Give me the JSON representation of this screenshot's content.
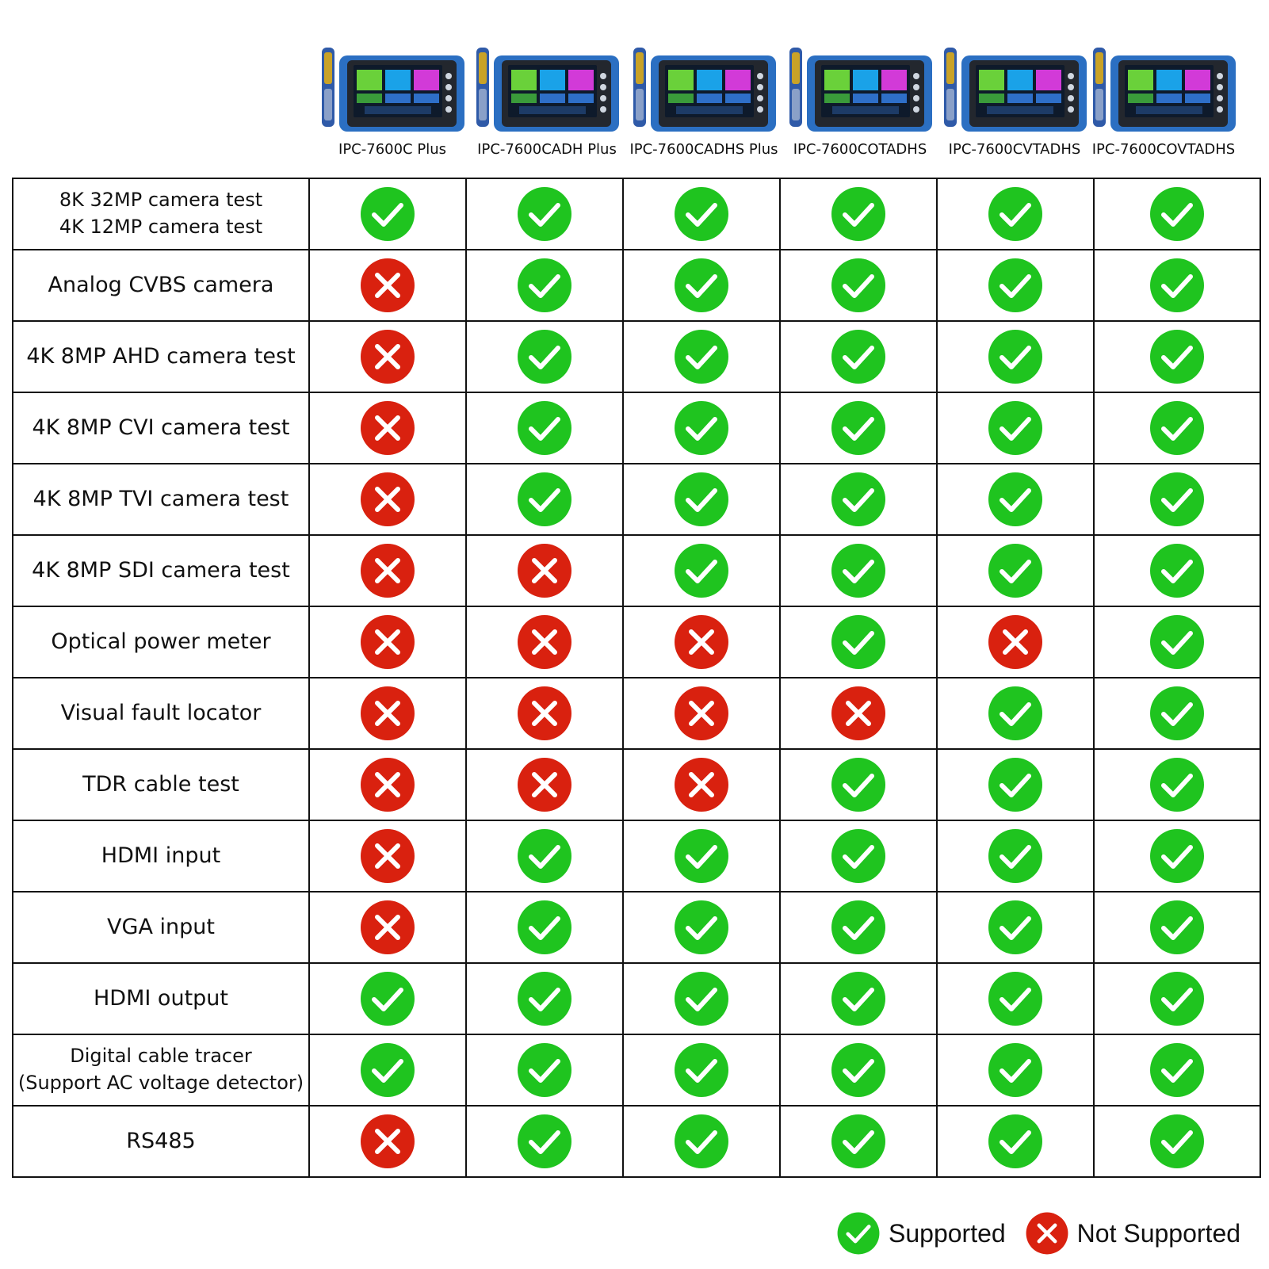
{
  "models": [
    {
      "name": "IPC-7600C Plus"
    },
    {
      "name": "IPC-7600CADH Plus"
    },
    {
      "name": "IPC-7600CADHS Plus"
    },
    {
      "name": "IPC-7600COTADHS"
    },
    {
      "name": "IPC-7600CVTADHS"
    },
    {
      "name": "IPC-7600COVTADHS"
    }
  ],
  "features": [
    {
      "label": "8K 32MP camera test",
      "label2": "4K 12MP camera test",
      "support": [
        true,
        true,
        true,
        true,
        true,
        true
      ]
    },
    {
      "label": "Analog CVBS camera",
      "support": [
        false,
        true,
        true,
        true,
        true,
        true
      ]
    },
    {
      "label": "4K 8MP AHD camera test",
      "support": [
        false,
        true,
        true,
        true,
        true,
        true
      ]
    },
    {
      "label": "4K 8MP CVI camera test",
      "support": [
        false,
        true,
        true,
        true,
        true,
        true
      ]
    },
    {
      "label": "4K 8MP TVI camera test",
      "support": [
        false,
        true,
        true,
        true,
        true,
        true
      ]
    },
    {
      "label": "4K 8MP SDI camera test",
      "support": [
        false,
        false,
        true,
        true,
        true,
        true
      ]
    },
    {
      "label": "Optical power meter",
      "support": [
        false,
        false,
        false,
        true,
        false,
        true
      ]
    },
    {
      "label": "Visual fault locator",
      "support": [
        false,
        false,
        false,
        false,
        true,
        true
      ]
    },
    {
      "label": "TDR cable  test",
      "support": [
        false,
        false,
        false,
        true,
        true,
        true
      ]
    },
    {
      "label": "HDMI input",
      "support": [
        false,
        true,
        true,
        true,
        true,
        true
      ]
    },
    {
      "label": "VGA input",
      "support": [
        false,
        true,
        true,
        true,
        true,
        true
      ]
    },
    {
      "label": "HDMI output",
      "support": [
        true,
        true,
        true,
        true,
        true,
        true
      ]
    },
    {
      "label": "Digital cable tracer",
      "label2": "(Support AC voltage detector)",
      "support": [
        true,
        true,
        true,
        true,
        true,
        true
      ]
    },
    {
      "label": "RS485",
      "support": [
        false,
        true,
        true,
        true,
        true,
        true
      ]
    }
  ],
  "legend": {
    "supported": "Supported",
    "not_supported": "Not Supported"
  },
  "colors": {
    "supported": "#1fc41f",
    "not_supported": "#d9210f",
    "border": "#111111",
    "device_body": "#2b6fc2",
    "device_bezel": "#23272e",
    "tile_green": "#6ad13a",
    "tile_blue": "#1aa2e8",
    "tile_magenta": "#d23ad8"
  },
  "icons": {
    "supported": "check-circle-icon",
    "not_supported": "x-circle-icon"
  }
}
